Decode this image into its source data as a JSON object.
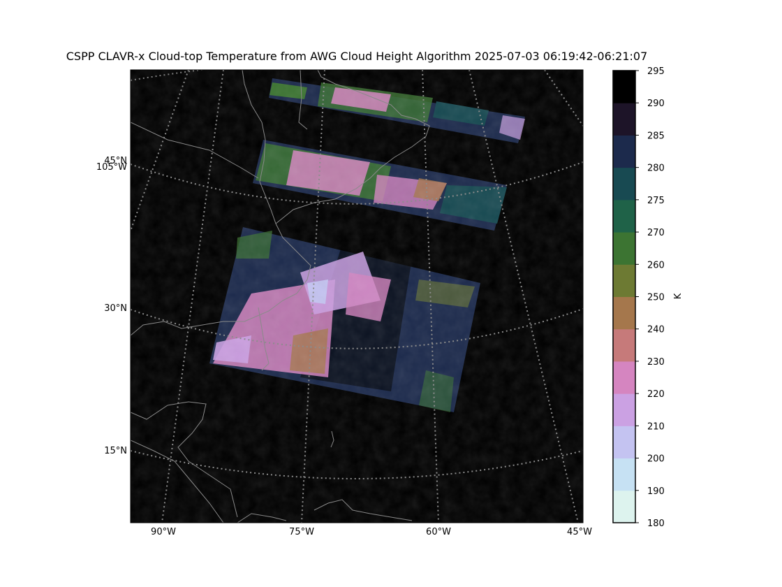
{
  "chart_data": {
    "type": "heatmap",
    "title": "CSPP CLAVR-x Cloud-top Temperature from AWG Cloud Height Algorithm 2025-07-03 06:19:42-06:21:07",
    "map": {
      "background": "#000000",
      "coastline_color": "#8a8a8a",
      "gridline_color": "#8c8c8c",
      "gridline_style": "dotted",
      "longitude_labels": [
        "90°W",
        "75°W",
        "60°W",
        "45°W"
      ],
      "latitude_labels": [
        "45°N",
        "30°N",
        "15°N"
      ],
      "extra_label": "105°W"
    },
    "colorbar": {
      "label": "K",
      "ticks": [
        180,
        190,
        200,
        210,
        220,
        230,
        240,
        250,
        260,
        270,
        275,
        280,
        285,
        290,
        295
      ],
      "colors": [
        "#ffffff",
        "#ddf3ee",
        "#c6e1f3",
        "#c4c3f1",
        "#cba1e3",
        "#d585c0",
        "#c67a7a",
        "#a5774c",
        "#6d7a33",
        "#3c7432",
        "#1f6248",
        "#184a52",
        "#1c2a4c",
        "#1d1428",
        "#000000"
      ]
    }
  }
}
